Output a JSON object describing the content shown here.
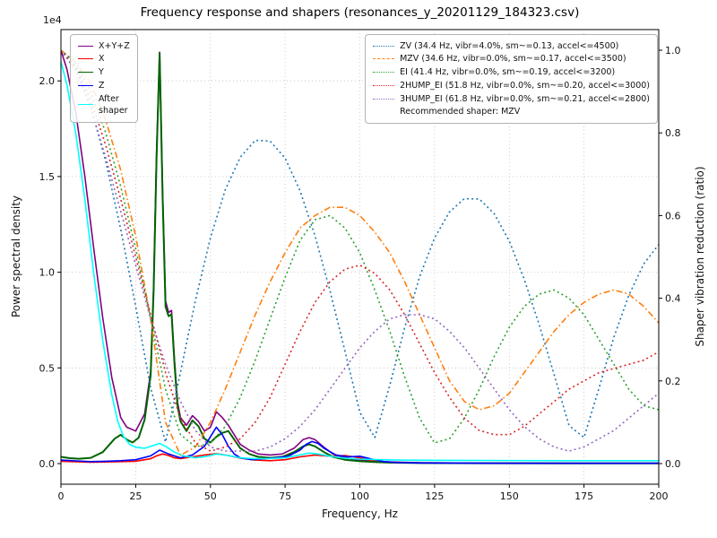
{
  "chart_data": {
    "type": "line",
    "title": "Frequency response and shapers (resonances_y_20201129_184323.csv)",
    "xlabel": "Frequency, Hz",
    "ylabel_left": "Power spectral density",
    "ylabel_right": "Shaper vibration reduction (ratio)",
    "offset_label": "1e4",
    "legend_note": "Recommended shaper: MZV",
    "grid": true,
    "xlim": [
      0,
      200
    ],
    "xticks": [
      0,
      25,
      50,
      75,
      100,
      125,
      150,
      175,
      200
    ],
    "ylim_left": [
      -1080,
      22680
    ],
    "yticks_left": [
      0,
      5000,
      10000,
      15000,
      20000
    ],
    "ytick_labels_left": [
      "0.0",
      "0.5",
      "1.0",
      "1.5",
      "2.0"
    ],
    "ylim_right": [
      -0.05,
      1.05
    ],
    "yticks_right": [
      0.0,
      0.2,
      0.4,
      0.6,
      0.8,
      1.0
    ],
    "psd_series": [
      {
        "name": "X+Y+Z",
        "color": "#800080",
        "style": "solid",
        "axis": "left",
        "x": [
          0,
          2,
          5,
          8,
          11,
          14,
          17,
          20,
          22,
          25,
          28,
          30,
          31,
          32,
          33,
          34,
          35,
          36,
          37,
          38,
          39,
          40,
          42,
          44,
          46,
          48,
          50,
          52,
          54,
          56,
          58,
          60,
          63,
          66,
          70,
          74,
          78,
          81,
          83,
          85,
          88,
          91,
          95,
          100,
          105,
          110,
          120,
          140,
          170,
          200
        ],
        "y": [
          21600,
          20600,
          18300,
          15000,
          11200,
          7600,
          4500,
          2400,
          1900,
          1700,
          2600,
          4800,
          9300,
          16300,
          21500,
          14300,
          8500,
          7900,
          8000,
          5400,
          3200,
          2400,
          2000,
          2500,
          2200,
          1700,
          1900,
          2700,
          2400,
          2000,
          1500,
          1000,
          700,
          500,
          450,
          500,
          800,
          1250,
          1350,
          1250,
          850,
          500,
          300,
          180,
          120,
          80,
          40,
          25,
          15,
          15
        ]
      },
      {
        "name": "X",
        "color": "#ff0000",
        "style": "solid",
        "axis": "left",
        "x": [
          0,
          5,
          10,
          15,
          20,
          25,
          30,
          32,
          34,
          36,
          38,
          40,
          44,
          48,
          52,
          56,
          60,
          65,
          70,
          75,
          80,
          85,
          90,
          95,
          100,
          105,
          110,
          120,
          140,
          170,
          200
        ],
        "y": [
          120,
          90,
          70,
          80,
          100,
          120,
          250,
          400,
          500,
          420,
          300,
          260,
          350,
          450,
          520,
          420,
          280,
          180,
          150,
          200,
          350,
          450,
          380,
          420,
          300,
          130,
          70,
          35,
          15,
          10,
          10
        ]
      },
      {
        "name": "Y",
        "color": "#006400",
        "style": "solid",
        "axis": "left",
        "x": [
          0,
          3,
          6,
          10,
          14,
          18,
          20,
          22,
          24,
          26,
          28,
          30,
          31,
          32,
          33,
          34,
          35,
          36,
          37,
          38,
          39,
          40,
          42,
          44,
          46,
          48,
          50,
          52,
          54,
          56,
          58,
          60,
          63,
          66,
          70,
          74,
          78,
          81,
          83,
          85,
          88,
          91,
          95,
          100,
          105,
          110,
          120,
          140,
          170,
          200
        ],
        "y": [
          350,
          280,
          250,
          300,
          600,
          1300,
          1500,
          1250,
          1100,
          1350,
          2300,
          4600,
          9000,
          16000,
          21450,
          14000,
          8200,
          7700,
          7800,
          5200,
          3000,
          2200,
          1700,
          2250,
          1950,
          1300,
          1100,
          1400,
          1600,
          1700,
          1250,
          800,
          500,
          350,
          300,
          350,
          600,
          900,
          1000,
          900,
          600,
          350,
          200,
          120,
          80,
          50,
          25,
          15,
          10,
          10
        ]
      },
      {
        "name": "Z",
        "color": "#0000ff",
        "style": "solid",
        "axis": "left",
        "x": [
          0,
          5,
          10,
          15,
          20,
          25,
          30,
          33,
          36,
          40,
          44,
          48,
          50,
          52,
          54,
          56,
          58,
          60,
          64,
          68,
          72,
          76,
          80,
          82,
          84,
          86,
          88,
          92,
          96,
          100,
          104,
          108,
          112,
          120,
          140,
          170,
          200
        ],
        "y": [
          180,
          140,
          100,
          120,
          150,
          200,
          400,
          700,
          500,
          300,
          450,
          900,
          1400,
          1900,
          1500,
          900,
          500,
          300,
          200,
          250,
          300,
          380,
          700,
          1000,
          1150,
          1050,
          800,
          450,
          350,
          380,
          230,
          100,
          60,
          30,
          15,
          10,
          10
        ]
      },
      {
        "name": "After\nshaper",
        "color": "#00ffff",
        "style": "solid",
        "axis": "left",
        "x": [
          0,
          2,
          5,
          8,
          11,
          14,
          17,
          19,
          21,
          23,
          25,
          28,
          31,
          33,
          35,
          38,
          41,
          45,
          49,
          52,
          56,
          60,
          65,
          70,
          75,
          80,
          83,
          86,
          90,
          95,
          100,
          110,
          120,
          140,
          170,
          200
        ],
        "y": [
          21000,
          19800,
          17200,
          13800,
          9900,
          6400,
          3600,
          2200,
          1400,
          1000,
          850,
          800,
          950,
          1050,
          900,
          600,
          400,
          300,
          380,
          500,
          420,
          300,
          250,
          260,
          300,
          450,
          550,
          500,
          380,
          280,
          230,
          190,
          170,
          160,
          150,
          150
        ]
      }
    ],
    "shaper_series": [
      {
        "name": "ZV",
        "label": "ZV (34.4 Hz, vibr=4.0%, sm~=0.13, accel<=4500)",
        "color": "#1f77b4",
        "style": "dotted",
        "axis": "right",
        "x": [
          0,
          5,
          10,
          15,
          20,
          25,
          30,
          35,
          40,
          45,
          50,
          55,
          60,
          65,
          70,
          75,
          80,
          85,
          90,
          95,
          100,
          105,
          110,
          115,
          120,
          125,
          130,
          135,
          140,
          145,
          150,
          155,
          160,
          165,
          170,
          175,
          180,
          185,
          190,
          195,
          200
        ],
        "y": [
          1.0,
          0.955,
          0.863,
          0.731,
          0.567,
          0.38,
          0.183,
          0.052,
          0.221,
          0.395,
          0.546,
          0.663,
          0.741,
          0.782,
          0.78,
          0.739,
          0.66,
          0.551,
          0.418,
          0.273,
          0.124,
          0.063,
          0.189,
          0.329,
          0.452,
          0.546,
          0.609,
          0.641,
          0.64,
          0.604,
          0.538,
          0.446,
          0.336,
          0.215,
          0.092,
          0.063,
          0.182,
          0.306,
          0.407,
          0.483,
          0.53
        ]
      },
      {
        "name": "MZV",
        "label": "MZV (34.6 Hz, vibr=0.0%, sm~=0.17, accel<=3500)",
        "color": "#ff7f0e",
        "style": "dashdot",
        "axis": "right",
        "x": [
          0,
          5,
          10,
          15,
          20,
          25,
          30,
          35,
          40,
          45,
          50,
          55,
          60,
          65,
          70,
          75,
          80,
          85,
          90,
          95,
          100,
          105,
          110,
          115,
          120,
          125,
          130,
          135,
          140,
          145,
          150,
          155,
          160,
          165,
          170,
          175,
          180,
          185,
          190,
          195,
          200
        ],
        "y": [
          1.0,
          0.97,
          0.92,
          0.83,
          0.71,
          0.55,
          0.35,
          0.1,
          0.02,
          0.04,
          0.1,
          0.18,
          0.27,
          0.36,
          0.44,
          0.51,
          0.57,
          0.6,
          0.62,
          0.62,
          0.6,
          0.56,
          0.51,
          0.44,
          0.36,
          0.28,
          0.2,
          0.15,
          0.13,
          0.14,
          0.17,
          0.22,
          0.27,
          0.32,
          0.36,
          0.39,
          0.41,
          0.42,
          0.41,
          0.38,
          0.34
        ]
      },
      {
        "name": "EI",
        "label": "EI (41.4 Hz, vibr=0.0%, sm~=0.19, accel<=3200)",
        "color": "#2ca02c",
        "style": "dotted",
        "axis": "right",
        "x": [
          0,
          5,
          10,
          15,
          20,
          25,
          30,
          35,
          40,
          45,
          50,
          55,
          60,
          65,
          70,
          75,
          80,
          85,
          90,
          95,
          100,
          105,
          110,
          115,
          120,
          125,
          130,
          135,
          140,
          145,
          150,
          155,
          160,
          165,
          170,
          175,
          180,
          185,
          190,
          195,
          200
        ],
        "y": [
          1.0,
          0.97,
          0.9,
          0.8,
          0.67,
          0.52,
          0.35,
          0.18,
          0.07,
          0.04,
          0.05,
          0.09,
          0.16,
          0.25,
          0.35,
          0.45,
          0.54,
          0.59,
          0.6,
          0.57,
          0.51,
          0.42,
          0.32,
          0.21,
          0.11,
          0.05,
          0.06,
          0.11,
          0.18,
          0.26,
          0.33,
          0.38,
          0.41,
          0.42,
          0.4,
          0.36,
          0.3,
          0.24,
          0.18,
          0.14,
          0.13
        ]
      },
      {
        "name": "2HUMP_EI",
        "label": "2HUMP_EI (51.8 Hz, vibr=0.0%, sm~=0.20, accel<=3000)",
        "color": "#d62728",
        "style": "dotted",
        "axis": "right",
        "x": [
          0,
          5,
          10,
          15,
          20,
          25,
          30,
          35,
          40,
          45,
          50,
          55,
          60,
          65,
          70,
          75,
          80,
          85,
          90,
          95,
          100,
          105,
          110,
          115,
          120,
          125,
          130,
          135,
          140,
          145,
          150,
          155,
          160,
          165,
          170,
          175,
          180,
          185,
          190,
          195,
          200
        ],
        "y": [
          1.0,
          0.96,
          0.88,
          0.77,
          0.64,
          0.5,
          0.36,
          0.22,
          0.11,
          0.05,
          0.03,
          0.04,
          0.06,
          0.1,
          0.16,
          0.24,
          0.32,
          0.39,
          0.44,
          0.47,
          0.48,
          0.46,
          0.42,
          0.36,
          0.29,
          0.22,
          0.16,
          0.11,
          0.08,
          0.07,
          0.07,
          0.09,
          0.12,
          0.15,
          0.18,
          0.2,
          0.22,
          0.23,
          0.24,
          0.25,
          0.27
        ]
      },
      {
        "name": "3HUMP_EI",
        "label": "3HUMP_EI (61.8 Hz, vibr=0.0%, sm~=0.21, accel<=2800)",
        "color": "#9467bd",
        "style": "dotted",
        "axis": "right",
        "x": [
          0,
          5,
          10,
          15,
          20,
          25,
          30,
          35,
          40,
          45,
          50,
          55,
          60,
          65,
          70,
          75,
          80,
          85,
          90,
          95,
          100,
          105,
          110,
          115,
          120,
          125,
          130,
          135,
          140,
          145,
          150,
          155,
          160,
          165,
          170,
          175,
          180,
          185,
          190,
          195,
          200
        ],
        "y": [
          1.0,
          0.95,
          0.86,
          0.74,
          0.61,
          0.48,
          0.35,
          0.24,
          0.15,
          0.08,
          0.04,
          0.03,
          0.03,
          0.03,
          0.04,
          0.06,
          0.09,
          0.13,
          0.18,
          0.23,
          0.28,
          0.32,
          0.35,
          0.36,
          0.36,
          0.35,
          0.32,
          0.28,
          0.23,
          0.18,
          0.13,
          0.09,
          0.06,
          0.04,
          0.03,
          0.04,
          0.06,
          0.08,
          0.11,
          0.14,
          0.17
        ]
      }
    ]
  }
}
